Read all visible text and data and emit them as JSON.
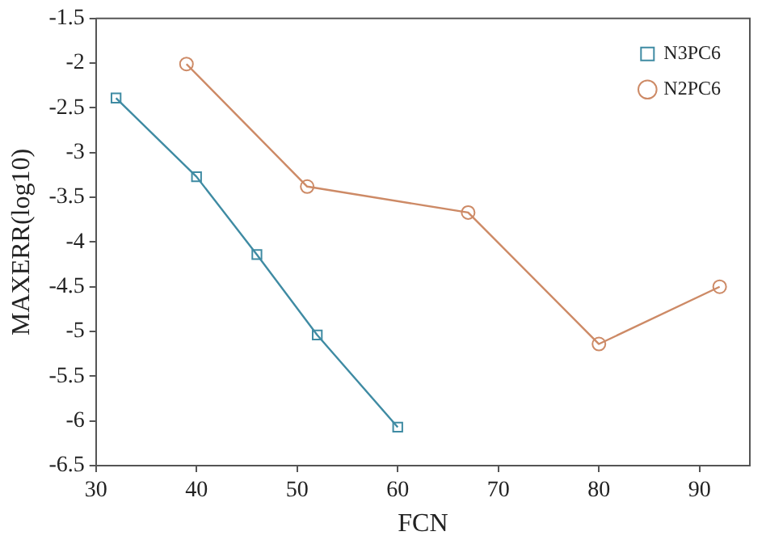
{
  "chart_data": {
    "type": "line",
    "xlabel": "FCN",
    "ylabel": "MAXERR(log10)",
    "xlim": [
      30,
      95
    ],
    "xticks": [
      30,
      40,
      50,
      60,
      70,
      80,
      90
    ],
    "ylim": [
      -6.5,
      -1.5
    ],
    "yticks": [
      -6.5,
      -6,
      -5.5,
      -5,
      -4.5,
      -4,
      -3.5,
      -3,
      -2.5,
      -2,
      -1.5
    ],
    "grid": false,
    "legend": "top right",
    "series": [
      {
        "name": "N3PC6",
        "color": "#3f8ba3",
        "marker": "square",
        "x": [
          32,
          40,
          46,
          52,
          60
        ],
        "values": [
          -2.39,
          -3.27,
          -4.14,
          -5.04,
          -6.07
        ]
      },
      {
        "name": "N2PC6",
        "color": "#cd8a66",
        "marker": "circle",
        "x": [
          39,
          51,
          67,
          80,
          92
        ],
        "values": [
          -2.01,
          -3.38,
          -3.67,
          -5.14,
          -4.5
        ]
      }
    ]
  }
}
